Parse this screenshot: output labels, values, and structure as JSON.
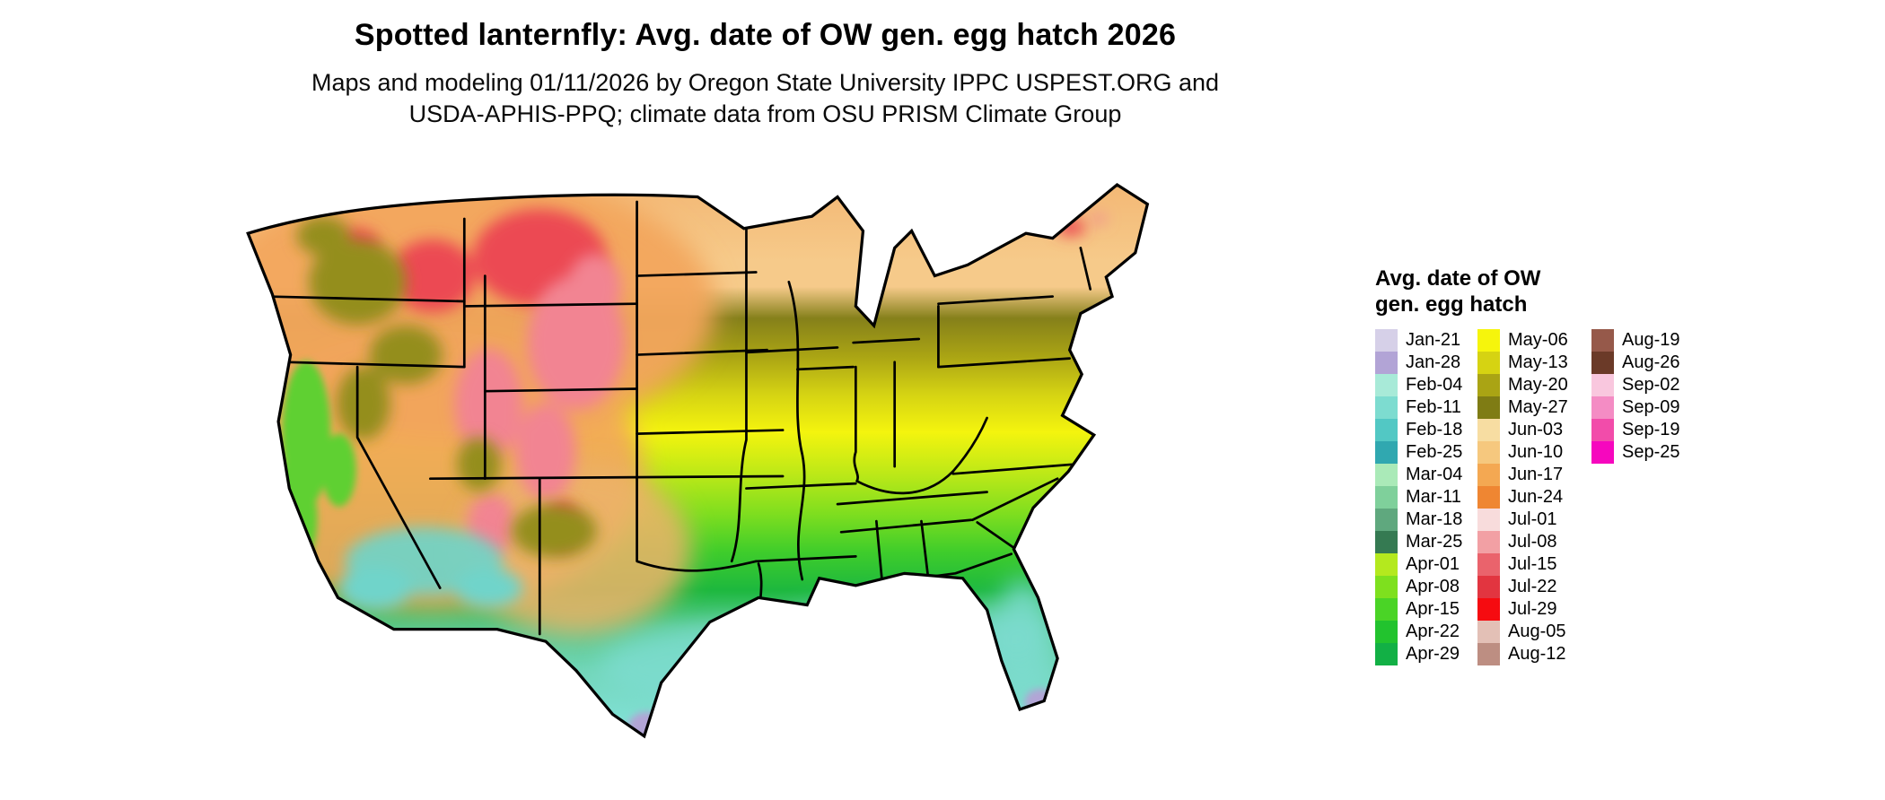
{
  "header": {
    "title": "Spotted lanternfly: Avg. date of OW gen. egg hatch 2026",
    "subtitle_line1": "Maps and modeling 01/11/2026 by Oregon State University IPPC USPEST.ORG and",
    "subtitle_line2": "USDA-APHIS-PPQ; climate data from OSU PRISM Climate Group"
  },
  "legend": {
    "title_line1": "Avg. date of OW",
    "title_line2": "gen. egg hatch",
    "columns": [
      [
        {
          "label": "Jan-21",
          "color": "#d6d0e8"
        },
        {
          "label": "Jan-28",
          "color": "#b2a4d6"
        },
        {
          "label": "Feb-04",
          "color": "#a8ead8"
        },
        {
          "label": "Feb-11",
          "color": "#7ddcd0"
        },
        {
          "label": "Feb-18",
          "color": "#52c8c4"
        },
        {
          "label": "Feb-25",
          "color": "#30a8b0"
        },
        {
          "label": "Mar-04",
          "color": "#aaeab8"
        },
        {
          "label": "Mar-11",
          "color": "#7fd09b"
        },
        {
          "label": "Mar-18",
          "color": "#5fa87e"
        },
        {
          "label": "Mar-25",
          "color": "#357a52"
        },
        {
          "label": "Apr-01",
          "color": "#b4e91e"
        },
        {
          "label": "Apr-08",
          "color": "#7ee01e"
        },
        {
          "label": "Apr-15",
          "color": "#4ad426"
        },
        {
          "label": "Apr-22",
          "color": "#22c32e"
        },
        {
          "label": "Apr-29",
          "color": "#12b045"
        }
      ],
      [
        {
          "label": "May-06",
          "color": "#f6f50c"
        },
        {
          "label": "May-13",
          "color": "#d6d312"
        },
        {
          "label": "May-20",
          "color": "#aaa414"
        },
        {
          "label": "May-27",
          "color": "#7f7c14"
        },
        {
          "label": "Jun-03",
          "color": "#f7dda2"
        },
        {
          "label": "Jun-10",
          "color": "#f6c87e"
        },
        {
          "label": "Jun-17",
          "color": "#f4a852"
        },
        {
          "label": "Jun-24",
          "color": "#ef8632"
        },
        {
          "label": "Jul-01",
          "color": "#f8dcdc"
        },
        {
          "label": "Jul-08",
          "color": "#f2a0a4"
        },
        {
          "label": "Jul-15",
          "color": "#ea636c"
        },
        {
          "label": "Jul-22",
          "color": "#e23540"
        },
        {
          "label": "Jul-29",
          "color": "#f60b10"
        },
        {
          "label": "Aug-05",
          "color": "#e3c0b6"
        },
        {
          "label": "Aug-12",
          "color": "#bd8e82"
        }
      ],
      [
        {
          "label": "Aug-19",
          "color": "#96594a"
        },
        {
          "label": "Aug-26",
          "color": "#6b3a28"
        },
        {
          "label": "Sep-02",
          "color": "#f9c7de"
        },
        {
          "label": "Sep-09",
          "color": "#f48cc4"
        },
        {
          "label": "Sep-19",
          "color": "#f24caa"
        },
        {
          "label": "Sep-25",
          "color": "#f607be"
        }
      ]
    ]
  },
  "map": {
    "region": "Contiguous United States",
    "band_colors": [
      "#f2b26e",
      "#f6ca8a",
      "#85801a",
      "#aaa414",
      "#d5d313",
      "#f4f40e",
      "#b9e818",
      "#7ede1f",
      "#3fcd2b",
      "#1db83e",
      "#55c98c",
      "#72d6b9",
      "#7fdfd2",
      "#99e9dc"
    ],
    "accents": {
      "west_tan": "#f2a55c",
      "west_tan_south": "#edb36a",
      "mountain_red": "#ec4a52",
      "mountain_pink": "#f28492",
      "mountain_olive": "#948e1c",
      "valley_green": "#5ed032",
      "desert_teal": "#6fd4ca",
      "gulf_teal": "#7cdccf",
      "early_purple": "#b2a4d6",
      "border_black": "#000000"
    }
  }
}
